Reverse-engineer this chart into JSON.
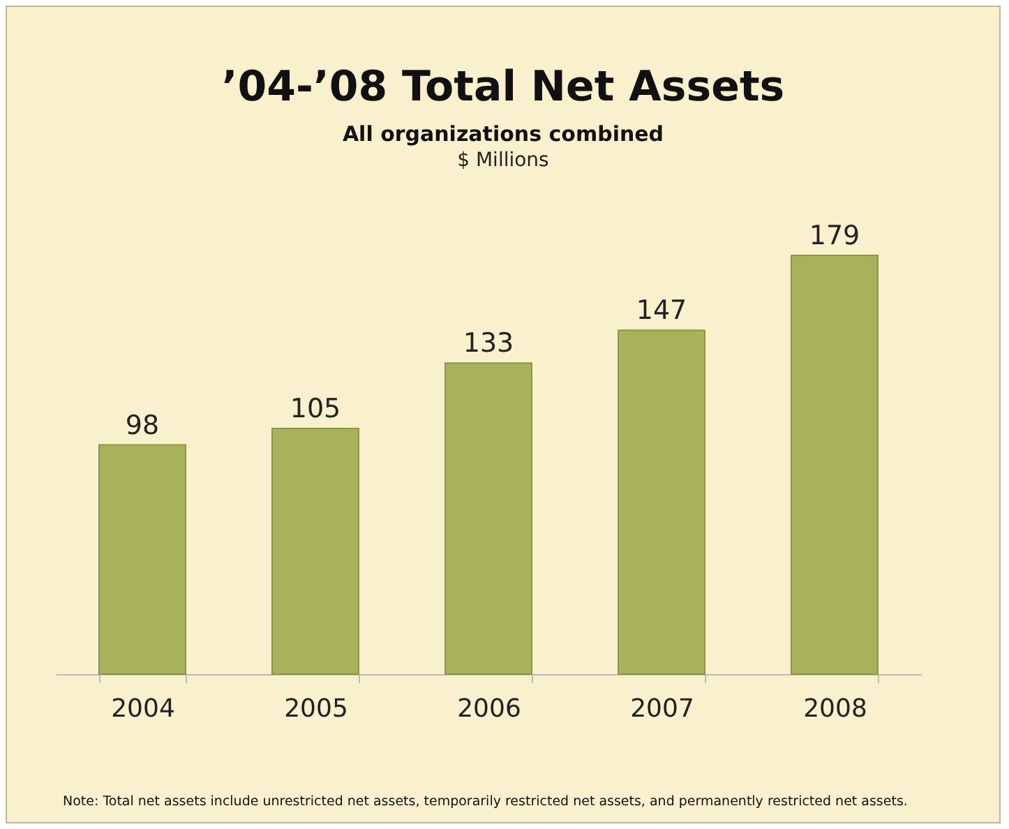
{
  "chart_data": {
    "type": "bar",
    "title": "’04-’08 Total Net Assets",
    "subtitle": "All organizations combined",
    "ylabel": "$ Millions",
    "categories": [
      "2004",
      "2005",
      "2006",
      "2007",
      "2008"
    ],
    "values": [
      98,
      105,
      133,
      147,
      179
    ],
    "color": "#a8b25a",
    "data_labels": true,
    "annotations": [
      "Note: Total net assets include unrestricted net assets, temporarily restricted net assets, and permanently restricted net assets."
    ]
  }
}
